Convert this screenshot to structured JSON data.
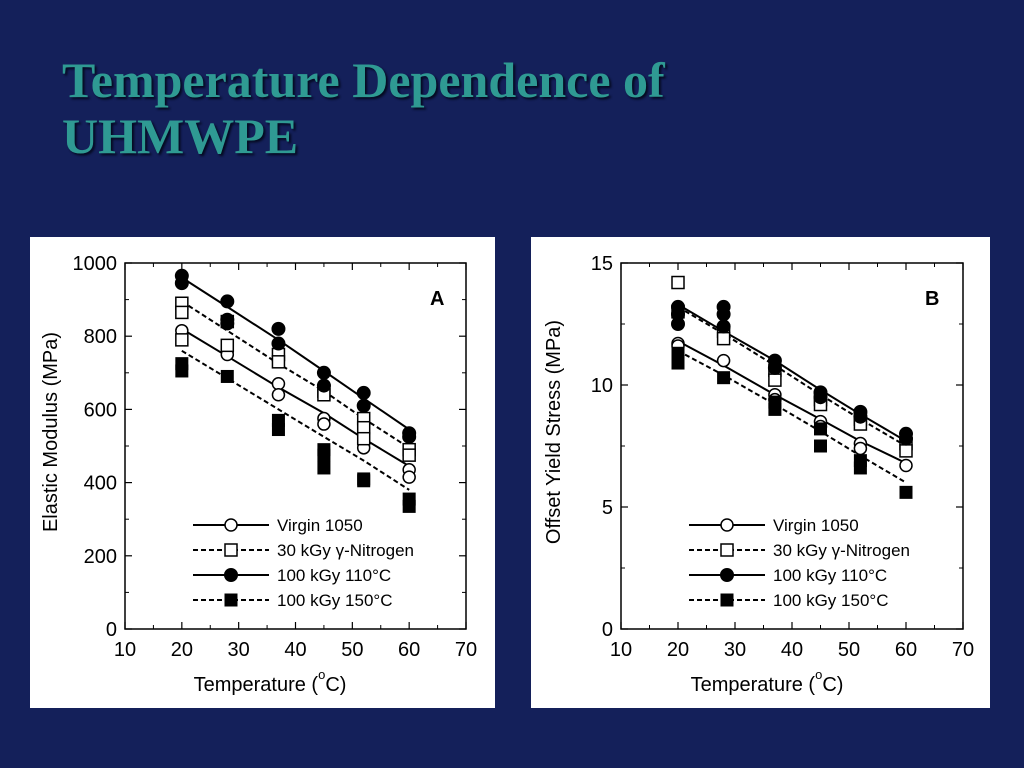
{
  "slide": {
    "title_line1": "Temperature Dependence of",
    "title_line2": "UHMWPE"
  },
  "chart_data": [
    {
      "type": "scatter",
      "panel_label": "A",
      "ylabel": "Elastic Modulus (MPa)",
      "xlabel_main": "Temperature (",
      "xlabel_degree": "o",
      "xlabel_unit": "C)",
      "xlim": [
        10,
        70
      ],
      "ylim": [
        0,
        1000
      ],
      "x_ticks": [
        "10",
        "20",
        "30",
        "40",
        "50",
        "60",
        "70"
      ],
      "y_ticks": [
        "0",
        "200",
        "400",
        "600",
        "800",
        "1000"
      ],
      "legend_position": "bottom-right",
      "series": [
        {
          "name": "Virgin 1050",
          "marker": "open-circle",
          "line": "solid",
          "points": [
            [
              20,
              815
            ],
            [
              28,
              760
            ],
            [
              28,
              750
            ],
            [
              37,
              670
            ],
            [
              37,
              640
            ],
            [
              45,
              575
            ],
            [
              45,
              560
            ],
            [
              52,
              510
            ],
            [
              52,
              495
            ],
            [
              60,
              435
            ],
            [
              60,
              415
            ]
          ],
          "fit": [
            [
              20,
              820
            ],
            [
              28,
              745
            ],
            [
              37,
              660
            ],
            [
              45,
              590
            ],
            [
              52,
              520
            ],
            [
              60,
              445
            ]
          ]
        },
        {
          "name": "30 kGy γ-Nitrogen",
          "marker": "open-square",
          "line": "dashed",
          "points": [
            [
              20,
              890
            ],
            [
              20,
              865
            ],
            [
              20,
              790
            ],
            [
              28,
              840
            ],
            [
              28,
              775
            ],
            [
              37,
              750
            ],
            [
              37,
              730
            ],
            [
              45,
              650
            ],
            [
              45,
              640
            ],
            [
              52,
              575
            ],
            [
              52,
              550
            ],
            [
              52,
              520
            ],
            [
              60,
              490
            ],
            [
              60,
              475
            ]
          ],
          "fit": [
            [
              20,
              895
            ],
            [
              28,
              815
            ],
            [
              37,
              725
            ],
            [
              45,
              650
            ],
            [
              52,
              575
            ],
            [
              60,
              495
            ]
          ]
        },
        {
          "name": "100 kGy 110°C",
          "marker": "filled-circle",
          "line": "solid",
          "points": [
            [
              20,
              965
            ],
            [
              20,
              945
            ],
            [
              28,
              895
            ],
            [
              28,
              845
            ],
            [
              28,
              835
            ],
            [
              37,
              820
            ],
            [
              37,
              780
            ],
            [
              45,
              700
            ],
            [
              45,
              665
            ],
            [
              52,
              645
            ],
            [
              52,
              610
            ],
            [
              60,
              535
            ],
            [
              60,
              525
            ]
          ],
          "fit": [
            [
              20,
              960
            ],
            [
              28,
              880
            ],
            [
              37,
              790
            ],
            [
              45,
              705
            ],
            [
              52,
              630
            ],
            [
              60,
              545
            ]
          ]
        },
        {
          "name": "100 kGy 150°C",
          "marker": "filled-square",
          "line": "dashed",
          "points": [
            [
              20,
              725
            ],
            [
              20,
              705
            ],
            [
              28,
              690
            ],
            [
              37,
              570
            ],
            [
              37,
              545
            ],
            [
              45,
              490
            ],
            [
              45,
              475
            ],
            [
              45,
              440
            ],
            [
              52,
              410
            ],
            [
              52,
              405
            ],
            [
              60,
              355
            ],
            [
              60,
              335
            ]
          ],
          "fit": [
            [
              20,
              760
            ],
            [
              28,
              685
            ],
            [
              37,
              600
            ],
            [
              45,
              525
            ],
            [
              52,
              460
            ],
            [
              60,
              380
            ]
          ]
        }
      ]
    },
    {
      "type": "scatter",
      "panel_label": "B",
      "ylabel": "Offset Yield Stress (MPa)",
      "xlabel_main": "Temperature (",
      "xlabel_degree": "o",
      "xlabel_unit": "C)",
      "xlim": [
        10,
        70
      ],
      "ylim": [
        0,
        15
      ],
      "x_ticks": [
        "10",
        "20",
        "30",
        "40",
        "50",
        "60",
        "70"
      ],
      "y_ticks": [
        "0",
        "5",
        "10",
        "15"
      ],
      "y_tick_values": [
        0,
        5,
        10,
        15
      ],
      "legend_position": "bottom-right",
      "series": [
        {
          "name": "Virgin 1050",
          "marker": "open-circle",
          "line": "solid",
          "points": [
            [
              20,
              11.7
            ],
            [
              20,
              11.6
            ],
            [
              28,
              11.0
            ],
            [
              37,
              9.6
            ],
            [
              37,
              9.4
            ],
            [
              45,
              8.5
            ],
            [
              45,
              8.3
            ],
            [
              52,
              7.6
            ],
            [
              52,
              7.4
            ],
            [
              60,
              6.7
            ]
          ],
          "fit": [
            [
              20,
              11.8
            ],
            [
              28,
              10.8
            ],
            [
              37,
              9.6
            ],
            [
              45,
              8.6
            ],
            [
              52,
              7.7
            ],
            [
              60,
              6.8
            ]
          ]
        },
        {
          "name": "30 kGy γ-Nitrogen",
          "marker": "open-square",
          "line": "dashed",
          "points": [
            [
              20,
              14.2
            ],
            [
              20,
              13.0
            ],
            [
              28,
              12.2
            ],
            [
              28,
              11.9
            ],
            [
              37,
              10.6
            ],
            [
              37,
              10.2
            ],
            [
              45,
              9.4
            ],
            [
              45,
              9.2
            ],
            [
              52,
              8.6
            ],
            [
              52,
              8.4
            ],
            [
              60,
              7.6
            ],
            [
              60,
              7.3
            ]
          ],
          "fit": [
            [
              20,
              13.2
            ],
            [
              28,
              12.1
            ],
            [
              37,
              10.8
            ],
            [
              45,
              9.6
            ],
            [
              52,
              8.6
            ],
            [
              60,
              7.5
            ]
          ]
        },
        {
          "name": "100 kGy 110°C",
          "marker": "filled-circle",
          "line": "solid",
          "points": [
            [
              20,
              13.2
            ],
            [
              20,
              12.9
            ],
            [
              20,
              12.5
            ],
            [
              28,
              13.2
            ],
            [
              28,
              12.9
            ],
            [
              28,
              12.4
            ],
            [
              37,
              11.0
            ],
            [
              37,
              10.7
            ],
            [
              45,
              9.7
            ],
            [
              45,
              9.5
            ],
            [
              52,
              8.9
            ],
            [
              52,
              8.7
            ],
            [
              60,
              8.0
            ],
            [
              60,
              7.8
            ]
          ],
          "fit": [
            [
              20,
              13.3
            ],
            [
              28,
              12.2
            ],
            [
              37,
              11.0
            ],
            [
              45,
              9.8
            ],
            [
              52,
              8.8
            ],
            [
              60,
              7.7
            ]
          ]
        },
        {
          "name": "100 kGy 150°C",
          "marker": "filled-square",
          "line": "dashed",
          "points": [
            [
              20,
              11.3
            ],
            [
              20,
              10.9
            ],
            [
              28,
              10.3
            ],
            [
              37,
              9.3
            ],
            [
              37,
              9.0
            ],
            [
              45,
              8.2
            ],
            [
              45,
              7.5
            ],
            [
              52,
              6.9
            ],
            [
              52,
              6.6
            ],
            [
              60,
              5.6
            ]
          ],
          "fit": [
            [
              20,
              11.4
            ],
            [
              28,
              10.4
            ],
            [
              37,
              9.2
            ],
            [
              45,
              8.1
            ],
            [
              52,
              7.1
            ],
            [
              60,
              6.0
            ]
          ]
        }
      ]
    }
  ]
}
